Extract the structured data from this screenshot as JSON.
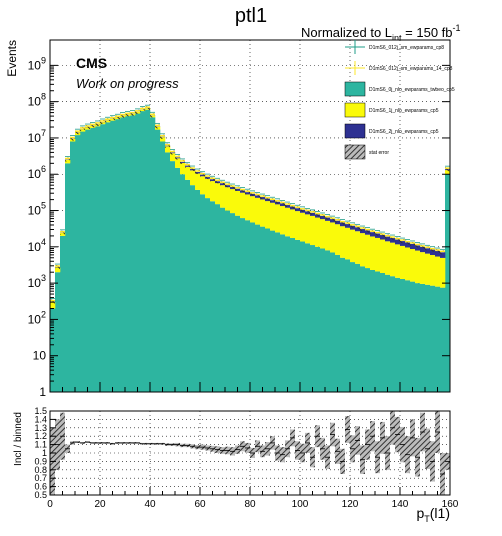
{
  "chart_data": [
    {
      "type": "histogram-stacked",
      "title": "ptl1",
      "lumi_label": "Normalized to L",
      "lumi_sub": "int",
      "lumi_value": " = 150 fb",
      "lumi_sup": "-1",
      "cms_label": "CMS",
      "cms_sublabel": "Work on progress",
      "ylabel": "Events",
      "xlabel": "p",
      "xlabel_sub": "T",
      "xlabel_suffix": "(l1)",
      "xlim": [
        0,
        160
      ],
      "ylim": [
        1,
        5000000000.0
      ],
      "yscale": "log",
      "ytick_labels": [
        "1",
        "10",
        "10",
        "10",
        "10",
        "10",
        "10",
        "10",
        "10",
        "10"
      ],
      "ytick_exps": [
        "",
        "",
        "2",
        "3",
        "4",
        "5",
        "6",
        "7",
        "8",
        "9"
      ],
      "xtick_labels": [
        "0",
        "20",
        "40",
        "60",
        "80",
        "100",
        "120",
        "140",
        "160"
      ],
      "legend": [
        {
          "name": "D1mS6_012j_sm_ewparams_cp8",
          "marker": "errorbar",
          "color": "#1f9e89"
        },
        {
          "name": "D1mS6_012j_sm_ewparams_14_cp8",
          "marker": "errorbar",
          "color": "#fde725"
        },
        {
          "name": "D1mS6_0j_nlo_ewparams_twbeo_cp5",
          "marker": "fill",
          "color": "#2db5a0"
        },
        {
          "name": "D1mS6_1j_nlo_ewparams_cp5",
          "marker": "fill",
          "color": "#fafa0a"
        },
        {
          "name": "D1mS6_2j_nlo_ewparams_cp5",
          "marker": "fill",
          "color": "#2e3192"
        },
        {
          "name": "stat error",
          "marker": "hatch",
          "color": "#555555"
        }
      ],
      "series": [
        {
          "name": "D1mS6_0j_nlo_ewparams_twbeo_cp5",
          "color": "#2db5a0",
          "bin_width": 2,
          "values": [
            200,
            2000,
            20000,
            2000000,
            8000000,
            12000000,
            15000000,
            17000000,
            19000000,
            21000000,
            24000000,
            27000000,
            30000000,
            33000000,
            37000000,
            40000000,
            42000000,
            47000000,
            55000000,
            60000000,
            37000000,
            17000000,
            8000000,
            4000000,
            2300000,
            1500000,
            1000000,
            700000,
            500000,
            370000,
            280000,
            220000,
            180000,
            150000,
            120000,
            100000,
            85000,
            72000,
            62000,
            54000,
            47000,
            41000,
            36000,
            32000,
            28000,
            25000,
            22000,
            19500,
            17500,
            15500,
            14000,
            12500,
            11200,
            10000,
            9000,
            8000,
            7000,
            6000,
            5000,
            4500,
            3800,
            3400,
            2900,
            2600,
            2300,
            2100,
            1900,
            1700,
            1550,
            1400,
            1300,
            1200,
            1100,
            1000,
            950,
            900,
            850,
            800,
            750,
            1000000
          ]
        },
        {
          "name": "D1mS6_1j_nlo_ewparams_cp5",
          "color": "#fafa0a",
          "bin_width": 2,
          "values": [
            100,
            700,
            4000,
            500000,
            1500000,
            2200000,
            2500000,
            2700000,
            2900000,
            3000000,
            3200000,
            3400000,
            3600000,
            3800000,
            4000000,
            4200000,
            4400000,
            4800000,
            5200000,
            5500000,
            4600000,
            3500000,
            2500000,
            1900000,
            1500000,
            1250000,
            1050000,
            900000,
            780000,
            680000,
            600000,
            530000,
            470000,
            420000,
            380000,
            340000,
            305000,
            275000,
            248000,
            224000,
            202000,
            183000,
            166000,
            150000,
            136000,
            123000,
            111000,
            100000,
            90000,
            81000,
            73000,
            66000,
            60000,
            54000,
            49000,
            44000,
            40000,
            36000,
            32000,
            29000,
            26000,
            23500,
            21000,
            19000,
            17000,
            15500,
            14000,
            12500,
            11500,
            10300,
            9300,
            8400,
            7600,
            6900,
            6200,
            5600,
            5100,
            4600,
            4200,
            300000
          ]
        },
        {
          "name": "D1mS6_2j_nlo_ewparams_cp5",
          "color": "#2e3192",
          "bin_width": 2,
          "values": [
            10,
            70,
            300,
            50000,
            150000,
            220000,
            250000,
            270000,
            290000,
            300000,
            320000,
            340000,
            360000,
            380000,
            400000,
            420000,
            440000,
            480000,
            520000,
            550000,
            460000,
            350000,
            250000,
            200000,
            170000,
            150000,
            135000,
            122000,
            111000,
            101000,
            92000,
            84000,
            77000,
            70000,
            64000,
            59000,
            54000,
            50000,
            46000,
            42000,
            39000,
            36000,
            33000,
            30500,
            28000,
            26000,
            24000,
            22000,
            20500,
            19000,
            17500,
            16200,
            15000,
            13900,
            12900,
            11900,
            11000,
            10200,
            9500,
            8800,
            8100,
            7500,
            7000,
            6500,
            6000,
            5600,
            5200,
            4800,
            4400,
            4100,
            3800,
            3500,
            3300,
            3000,
            2800,
            2600,
            2400,
            2250,
            2100,
            80000
          ]
        }
      ]
    },
    {
      "type": "scatter-ratio",
      "ylabel": "Incl / binned",
      "xlim": [
        0,
        160
      ],
      "ylim": [
        0.5,
        1.5
      ],
      "ytick_labels": [
        "0.5",
        "0.6",
        "0.7",
        "0.8",
        "0.9",
        "1",
        "1.1",
        "1.2",
        "1.3",
        "1.4",
        "1.5"
      ],
      "xtick_labels": [
        "0",
        "20",
        "40",
        "60",
        "80",
        "100",
        "120",
        "140",
        "160"
      ],
      "xlabel": "p",
      "xlabel_sub": "T",
      "xlabel_suffix": "(l1)",
      "bin_width": 2,
      "values": [
        0.9,
        1.1,
        1.2,
        1.05,
        1.12,
        1.13,
        1.12,
        1.13,
        1.12,
        1.12,
        1.12,
        1.12,
        1.11,
        1.12,
        1.12,
        1.12,
        1.12,
        1.12,
        1.11,
        1.11,
        1.11,
        1.11,
        1.11,
        1.1,
        1.1,
        1.1,
        1.09,
        1.09,
        1.08,
        1.07,
        1.07,
        1.06,
        1.05,
        1.04,
        1.03,
        1.03,
        1.02,
        1.04,
        1.08,
        1.06,
        1.0,
        1.08,
        1.02,
        1.05,
        1.12,
        1.0,
        0.98,
        1.05,
        1.18,
        1.03,
        1.0,
        1.12,
        0.95,
        1.2,
        1.05,
        0.95,
        1.22,
        1.02,
        0.9,
        1.28,
        1.05,
        1.15,
        0.92,
        1.1,
        1.2,
        0.95,
        1.18,
        1.0,
        1.3,
        1.22,
        1.1,
        0.98,
        1.18,
        0.95,
        1.25,
        1.05,
        0.9,
        1.25,
        0.75,
        0.9
      ],
      "errors": [
        0.4,
        0.3,
        0.28,
        0.05,
        0.02,
        0.01,
        0.01,
        0.01,
        0.01,
        0.01,
        0.01,
        0.01,
        0.01,
        0.01,
        0.01,
        0.01,
        0.01,
        0.01,
        0.01,
        0.01,
        0.01,
        0.01,
        0.01,
        0.015,
        0.015,
        0.02,
        0.02,
        0.02,
        0.025,
        0.025,
        0.03,
        0.03,
        0.035,
        0.04,
        0.04,
        0.045,
        0.05,
        0.05,
        0.06,
        0.06,
        0.06,
        0.07,
        0.07,
        0.08,
        0.08,
        0.09,
        0.09,
        0.1,
        0.1,
        0.11,
        0.11,
        0.12,
        0.12,
        0.13,
        0.13,
        0.14,
        0.14,
        0.15,
        0.15,
        0.16,
        0.16,
        0.17,
        0.17,
        0.18,
        0.18,
        0.19,
        0.19,
        0.2,
        0.2,
        0.21,
        0.21,
        0.22,
        0.22,
        0.23,
        0.23,
        0.24,
        0.24,
        0.25,
        0.25,
        0.1
      ]
    }
  ]
}
